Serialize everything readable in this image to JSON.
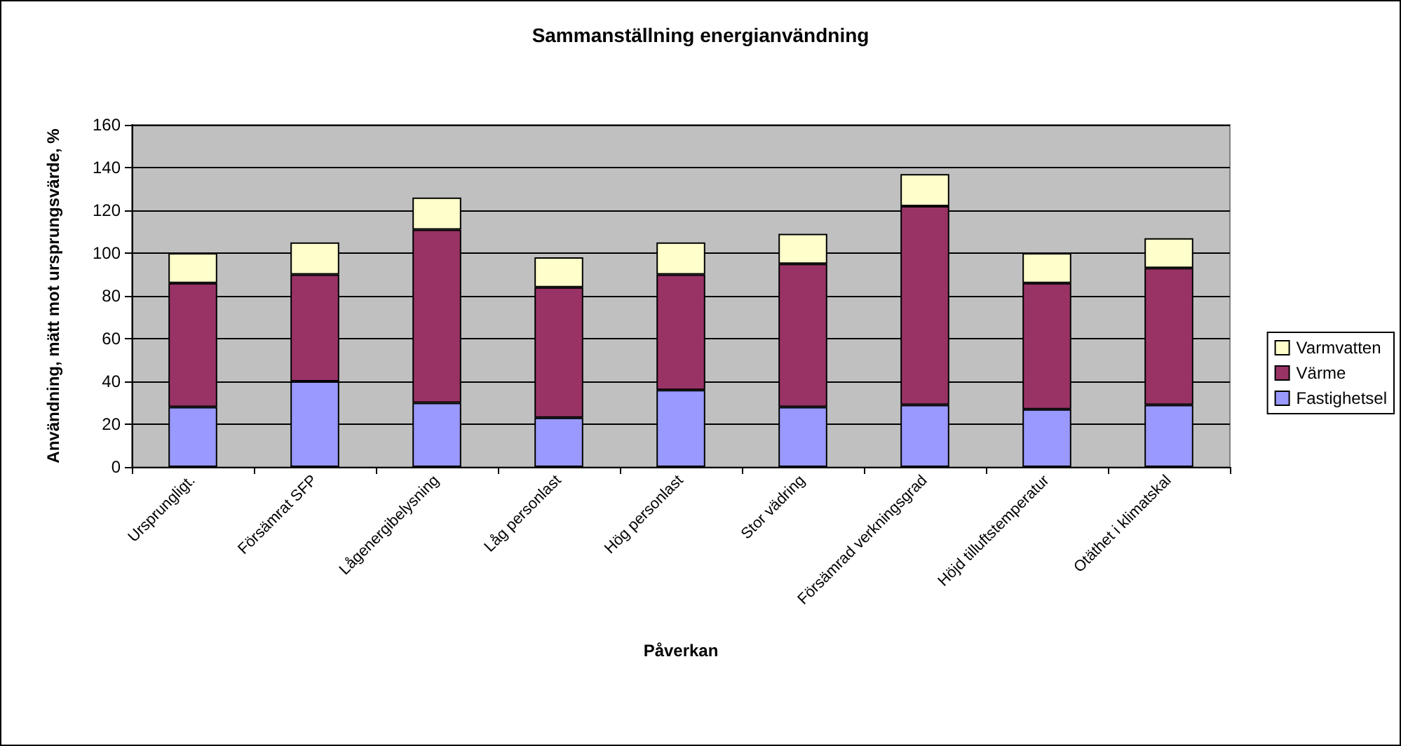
{
  "chart_data": {
    "type": "bar",
    "title": "Sammanställning energianvändning",
    "xlabel": "Påverkan",
    "ylabel": "Användning, mätt mot ursprungsvärde, %",
    "categories": [
      "Ursprungligt.",
      "Försämrat SFP",
      "Lågenergibelysning",
      "Låg personlast",
      "Hög personlast",
      "Stor vädring",
      "Försämrad verkningsgrad",
      "Höjd tilluftstemperatur",
      "Otäthet i klimatskal"
    ],
    "series": [
      {
        "name": "Fastighetsel",
        "color": "#9999ff",
        "values": [
          28,
          40,
          30,
          23,
          36,
          28,
          29,
          27,
          29
        ]
      },
      {
        "name": "Värme",
        "color": "#993366",
        "values": [
          58,
          50,
          81,
          61,
          54,
          67,
          93,
          59,
          64
        ]
      },
      {
        "name": "Varmvatten",
        "color": "#ffffcc",
        "values": [
          14,
          15,
          15,
          14,
          15,
          14,
          15,
          14,
          14
        ]
      }
    ],
    "stacked": true,
    "ylim": [
      0,
      160
    ],
    "yticks": [
      0,
      20,
      40,
      60,
      80,
      100,
      120,
      140,
      160
    ],
    "grid": "y",
    "legend": "right"
  }
}
